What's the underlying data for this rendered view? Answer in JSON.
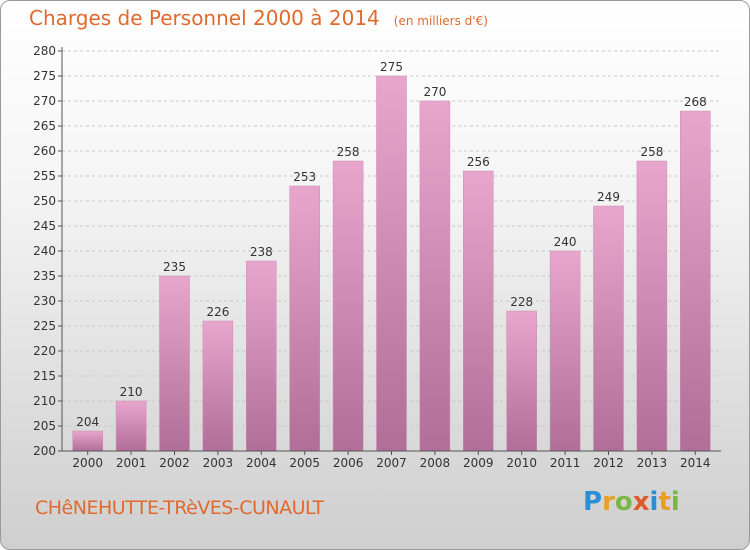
{
  "header": {
    "title": "Charges de Personnel 2000 à 2014",
    "subtitle": "(en milliers d'€)"
  },
  "footer": {
    "commune": "CHêNEHUTTE-TRèVES-CUNAULT"
  },
  "logo": {
    "letters": [
      "P",
      "r",
      "o",
      "x",
      "i",
      "t",
      "i"
    ],
    "colors": [
      "#2a8fd6",
      "#e9a020",
      "#7ab648",
      "#e05a2b",
      "#2a8fd6",
      "#e9a020",
      "#7ab648"
    ]
  },
  "colors": {
    "bar_top": "#e9a6cd",
    "bar_bottom": "#b06e98",
    "grid": "#c8c8c8",
    "axis": "#555555"
  },
  "chart_data": {
    "type": "bar",
    "categories": [
      "2000",
      "2001",
      "2002",
      "2003",
      "2004",
      "2005",
      "2006",
      "2007",
      "2008",
      "2009",
      "2010",
      "2011",
      "2012",
      "2013",
      "2014"
    ],
    "values": [
      204,
      210,
      235,
      226,
      238,
      253,
      258,
      275,
      270,
      256,
      228,
      240,
      249,
      258,
      268
    ],
    "ylim": [
      200,
      280
    ],
    "yticks": [
      200,
      205,
      210,
      215,
      220,
      225,
      230,
      235,
      240,
      245,
      250,
      255,
      260,
      265,
      270,
      275,
      280
    ],
    "grid": true
  }
}
